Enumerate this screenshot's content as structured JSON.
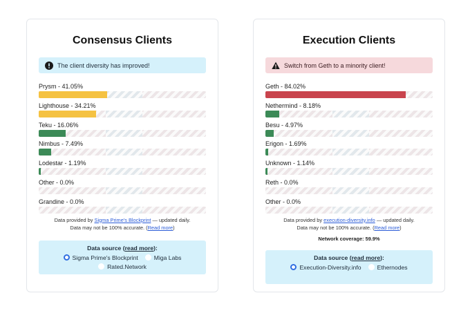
{
  "consensus": {
    "title": "Consensus Clients",
    "alert": "The client diversity has improved!",
    "alert_icon": "exclamation-circle-icon",
    "clients": [
      {
        "label": "Prysm - 41.05%",
        "value": 41.05,
        "color": "#f5c242"
      },
      {
        "label": "Lighthouse - 34.21%",
        "value": 34.21,
        "color": "#f5c242"
      },
      {
        "label": "Teku - 16.06%",
        "value": 16.06,
        "color": "#3c8a57"
      },
      {
        "label": "Nimbus - 7.49%",
        "value": 7.49,
        "color": "#3c8a57"
      },
      {
        "label": "Lodestar - 1.19%",
        "value": 1.19,
        "color": "#3c8a57"
      },
      {
        "label": "Other - 0.0%",
        "value": 0.0,
        "color": "#3c8a57"
      },
      {
        "label": "Grandine - 0.0%",
        "value": 0.0,
        "color": "#3c8a57"
      }
    ],
    "foot_prefix": "Data provided by",
    "foot_link": "Sigma Prime's Blockprint",
    "foot_suffix": "— updated daily.",
    "foot_line2": "Data may not be 100% accurate. (",
    "foot_readmore": "Read more",
    "foot_close": ")",
    "source_label": "Data source (",
    "source_readmore": "read more",
    "source_close": "):",
    "options": [
      {
        "label": "Sigma Prime's Blockprint",
        "checked": true
      },
      {
        "label": "Miga Labs",
        "checked": false
      },
      {
        "label": "Rated.Network",
        "checked": false
      }
    ]
  },
  "execution": {
    "title": "Execution Clients",
    "alert": "Switch from Geth to a minority client!",
    "alert_icon": "warning-triangle-icon",
    "clients": [
      {
        "label": "Geth - 84.02%",
        "value": 84.02,
        "color": "#c9444d"
      },
      {
        "label": "Nethermind - 8.18%",
        "value": 8.18,
        "color": "#3c8a57"
      },
      {
        "label": "Besu - 4.97%",
        "value": 4.97,
        "color": "#3c8a57"
      },
      {
        "label": "Erigon - 1.69%",
        "value": 1.69,
        "color": "#3c8a57"
      },
      {
        "label": "Unknown - 1.14%",
        "value": 1.14,
        "color": "#3c8a57"
      },
      {
        "label": "Reth - 0.0%",
        "value": 0.0,
        "color": "#3c8a57"
      },
      {
        "label": "Other - 0.0%",
        "value": 0.0,
        "color": "#3c8a57"
      }
    ],
    "foot_prefix": "Data provided by",
    "foot_link": "execution-diversity.info",
    "foot_suffix": "— updated daily.",
    "foot_line2": "Data may not be 100% accurate. (",
    "foot_readmore": "Read more",
    "foot_close": ")",
    "coverage": "Network coverage: 59.9%",
    "source_label": "Data source (",
    "source_readmore": "read more",
    "source_close": "):",
    "options": [
      {
        "label": "Execution-Diversity.info",
        "checked": true
      },
      {
        "label": "Ethernodes",
        "checked": false
      }
    ]
  }
}
